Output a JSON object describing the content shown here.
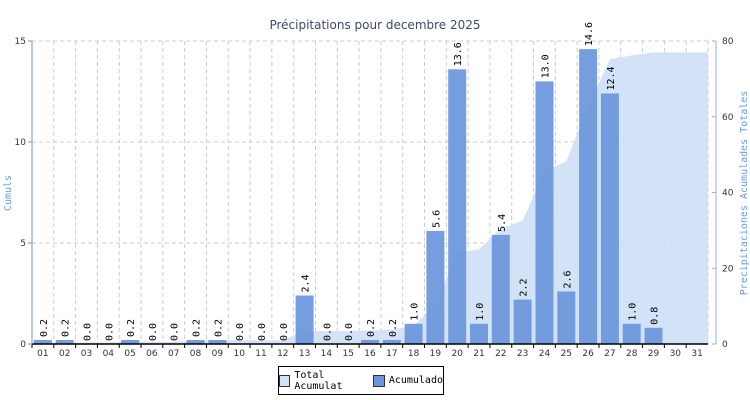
{
  "chart_data": {
    "type": "bar",
    "title": "Précipitations pour decembre 2025",
    "xlabel": "",
    "ylabel": "Cumuls",
    "y2label": "Precipitaciones Acumulades Totales",
    "ylim": [
      0,
      15
    ],
    "y2lim": [
      0,
      80
    ],
    "yticks": [
      0,
      5,
      10,
      15
    ],
    "y2ticks": [
      0,
      20,
      40,
      60,
      80
    ],
    "grid": true,
    "legend_placement": "bottom",
    "categories": [
      "01",
      "02",
      "03",
      "04",
      "05",
      "06",
      "07",
      "08",
      "09",
      "10",
      "11",
      "12",
      "13",
      "14",
      "15",
      "16",
      "17",
      "18",
      "19",
      "20",
      "21",
      "22",
      "23",
      "24",
      "25",
      "26",
      "27",
      "28",
      "29",
      "30",
      "31"
    ],
    "series": [
      {
        "name": "Total Acumulat",
        "type": "area",
        "axis": "right",
        "color": "#d2e0f8",
        "values": [
          0.2,
          0.4,
          0.4,
          0.4,
          0.6,
          0.6,
          0.6,
          0.8,
          1.0,
          1.0,
          1.0,
          1.0,
          3.4,
          3.4,
          3.4,
          3.6,
          3.8,
          4.8,
          10.4,
          24.0,
          25.0,
          30.4,
          32.6,
          45.6,
          48.2,
          62.8,
          75.2,
          76.2,
          77.0,
          77.0,
          77.0
        ]
      },
      {
        "name": "Acumulado",
        "type": "bar",
        "axis": "left",
        "color": "#6a96dc",
        "values": [
          0.2,
          0.2,
          0.0,
          0.0,
          0.2,
          0.0,
          0.0,
          0.2,
          0.2,
          0.0,
          0.0,
          0.0,
          2.4,
          0.0,
          0.0,
          0.2,
          0.2,
          1.0,
          5.6,
          13.6,
          1.0,
          5.4,
          2.2,
          13.0,
          2.6,
          14.6,
          12.4,
          1.0,
          0.8,
          null,
          null
        ],
        "labels": [
          "0.2",
          "0.2",
          "0.0",
          "0.0",
          "0.2",
          "0.0",
          "0.0",
          "0.2",
          "0.2",
          "0.0",
          "0.0",
          "0.0",
          "2.4",
          "0.0",
          "0.0",
          "0.2",
          "0.2",
          "1.0",
          "5.6",
          "13.6",
          "1.0",
          "5.4",
          "2.2",
          "13.0",
          "2.6",
          "14.6",
          "12.4",
          "1.0",
          "0.8",
          "",
          ""
        ]
      }
    ]
  }
}
